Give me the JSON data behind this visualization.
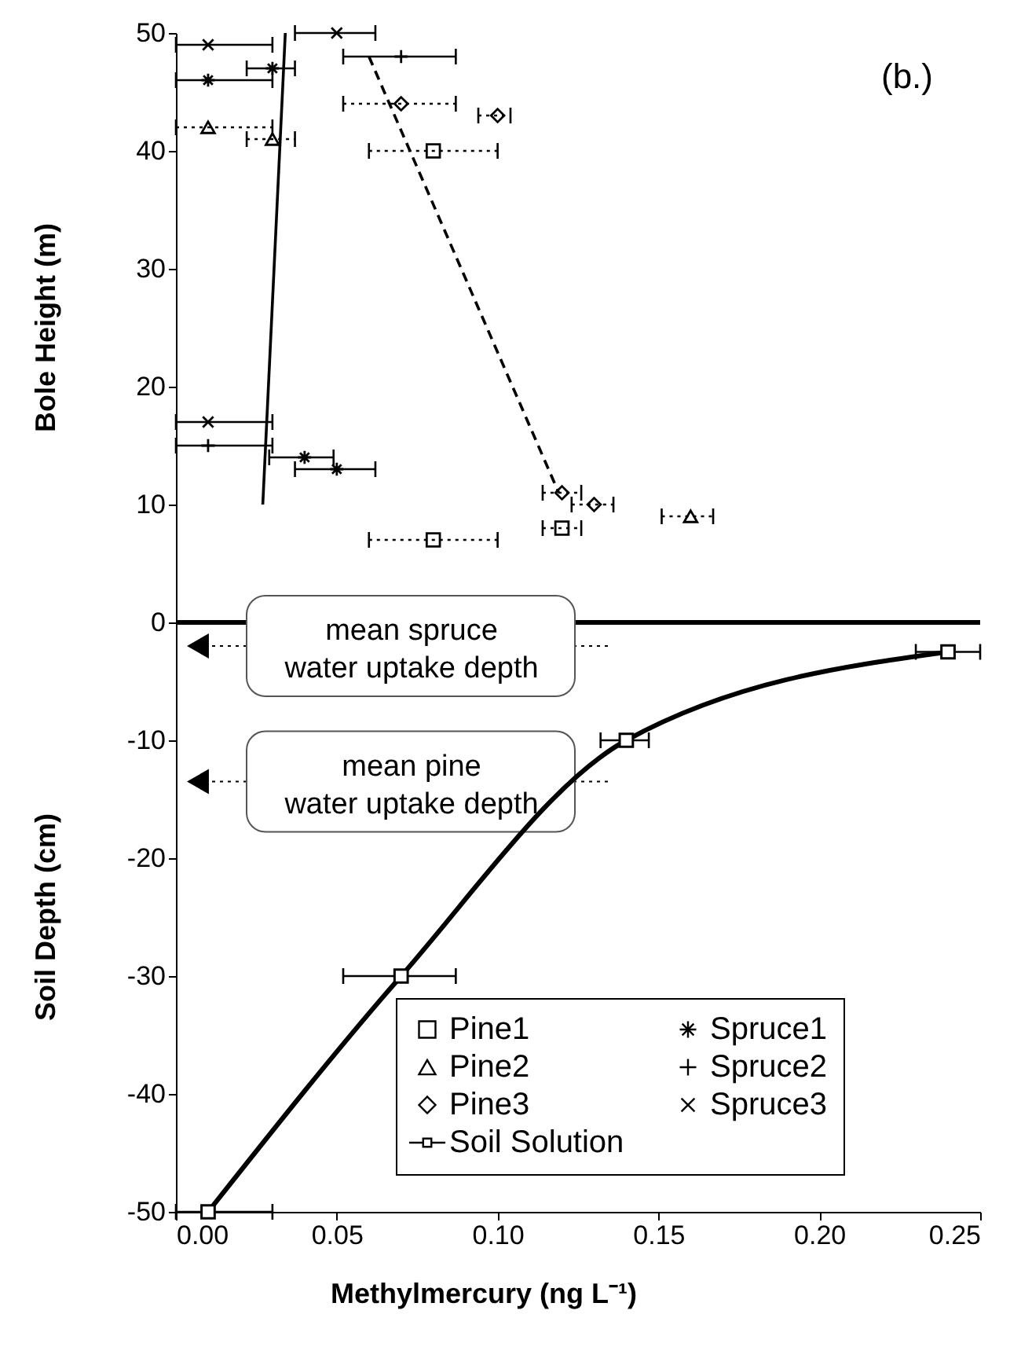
{
  "chart_data": {
    "type": "scatter",
    "title": "(b.)",
    "xlabel": "Methylmercury (ng L⁻¹)",
    "ylabel": "Bole Height (m)",
    "annotations": [
      "Soil Depth (cm)"
    ],
    "xlim": [
      0,
      0.25
    ],
    "xticks": [
      {
        "value": 0,
        "label": "0.00"
      },
      {
        "value": 0.05,
        "label": "0.05"
      },
      {
        "value": 0.1,
        "label": "0.10"
      },
      {
        "value": 0.15,
        "label": "0.15"
      },
      {
        "value": 0.2,
        "label": "0.20"
      },
      {
        "value": 0.25,
        "label": "0.25"
      }
    ],
    "ylim": [
      -50,
      50
    ],
    "yticks": [
      -50,
      -40,
      -30,
      -20,
      -10,
      0,
      10,
      20,
      30,
      40,
      50
    ],
    "grid": false,
    "legend": "bottom right",
    "series": [
      {
        "name": "Pine1",
        "type": "scatter",
        "color": "#000000",
        "marker": "square",
        "line_style": "dotted",
        "x": [
          0.08,
          0.12,
          0.08
        ],
        "values": [
          40,
          8,
          7
        ],
        "xerrors": [
          [
            0.06,
            0.1
          ],
          [
            0.114,
            0.126
          ],
          [
            0.06,
            0.1
          ]
        ]
      },
      {
        "name": "Pine2",
        "type": "scatter",
        "color": "#000000",
        "marker": "triangle",
        "line_style": "dotted",
        "x": [
          0.01,
          0.03,
          0.16
        ],
        "values": [
          42,
          41,
          9
        ],
        "xerrors": [
          [
            0.0,
            0.03
          ],
          [
            0.022,
            0.037
          ],
          [
            0.151,
            0.167
          ]
        ]
      },
      {
        "name": "Pine3",
        "type": "scatter",
        "color": "#000000",
        "marker": "diamond",
        "line_style": "dotted",
        "x": [
          0.07,
          0.1,
          0.12,
          0.13
        ],
        "values": [
          44,
          43,
          11,
          10
        ],
        "xerrors": [
          [
            0.052,
            0.087
          ],
          [
            0.094,
            0.104
          ],
          [
            0.114,
            0.126
          ],
          [
            0.123,
            0.136
          ]
        ]
      },
      {
        "name": "Soil Solution",
        "type": "line",
        "color": "#000000",
        "marker": "square",
        "line_style": "solid",
        "x": [
          0.01,
          0.07,
          0.14,
          0.24
        ],
        "values": [
          -50,
          -30,
          -10,
          -2.5
        ],
        "xerrors": [
          [
            0.0,
            0.03
          ],
          [
            0.052,
            0.087
          ],
          [
            0.132,
            0.147
          ],
          [
            0.23,
            0.25
          ]
        ]
      },
      {
        "name": "Spruce1",
        "type": "scatter",
        "color": "#000000",
        "line_style": "solid",
        "x": [
          0.03,
          0.01,
          0.04,
          0.05
        ],
        "values": [
          47,
          46,
          14,
          13
        ],
        "xerrors": [
          [
            0.022,
            0.037
          ],
          [
            0.0,
            0.03
          ],
          [
            0.029,
            0.049
          ],
          [
            0.037,
            0.062
          ]
        ]
      },
      {
        "name": "Spruce2",
        "type": "scatter",
        "color": "#000000",
        "marker": "plus",
        "line_style": "solid",
        "x": [
          0.07,
          0.01
        ],
        "values": [
          48,
          15
        ],
        "xerrors": [
          [
            0.052,
            0.087
          ],
          [
            0.0,
            0.03
          ]
        ]
      },
      {
        "name": "Spruce3",
        "type": "scatter",
        "color": "#000000",
        "marker": "cross",
        "line_style": "solid",
        "x": [
          0.01,
          0.05,
          0.01
        ],
        "values": [
          49,
          50,
          17
        ],
        "xerrors": [
          [
            0.0,
            0.03
          ],
          [
            0.037,
            0.062
          ],
          [
            0.0,
            0.03
          ]
        ]
      },
      {
        "type": "line",
        "color": "#000000",
        "marker": "none",
        "line_style": "solid",
        "x": [
          0.027,
          0.034
        ],
        "values": [
          10,
          50
        ]
      },
      {
        "type": "line",
        "color": "#000000",
        "marker": "none",
        "line_style": "dashed",
        "x": [
          0.06,
          0.119
        ],
        "values": [
          48,
          11
        ]
      }
    ],
    "ref_lines": [
      {
        "axis": "y",
        "value": 0,
        "line_style": "solid",
        "color": "#000000"
      },
      {
        "axis": "y",
        "value": -2,
        "label": "mean spruce\nwater uptake depth",
        "line_style": "dotted",
        "color": "#000000"
      },
      {
        "axis": "y",
        "value": -13.5,
        "label": "mean pine\nwater uptake depth",
        "line_style": "dotted",
        "color": "#000000"
      }
    ]
  }
}
